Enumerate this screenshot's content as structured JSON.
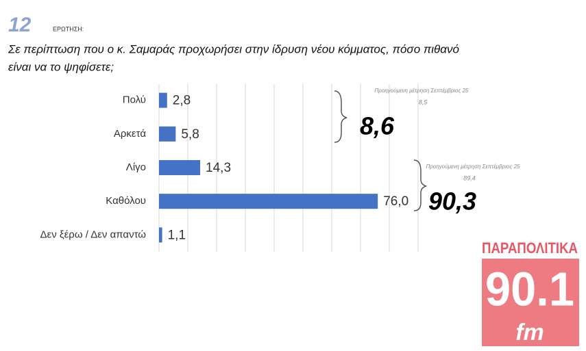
{
  "header": {
    "number": "12",
    "label": "ΕΡΩΤΗΣΗ:"
  },
  "chart_data": {
    "type": "bar",
    "orientation": "horizontal",
    "title_lines": [
      "Σε περίπτωση που ο κ. Σαμαράς προχωρήσει στην ίδρυση νέου κόμματος, πόσο πιθανό",
      "είναι να το ψηφίσετε;"
    ],
    "categories": [
      "Πολύ",
      "Αρκετά",
      "Λίγο",
      "Καθόλου",
      "Δεν ξέρω / Δεν απαντώ"
    ],
    "values": [
      2.8,
      5.8,
      14.3,
      76.0,
      1.1
    ],
    "value_labels": [
      "2,8",
      "5,8",
      "14,3",
      "76,0",
      "1,1"
    ],
    "color": "#4472c4",
    "xlim": [
      0,
      90
    ],
    "xticks": [
      0,
      10,
      20,
      30,
      40,
      50,
      60,
      70,
      80,
      90
    ],
    "grid": true,
    "annotations": [
      {
        "note": "Προηγούμενη μέτρηση Σεπτέμβριος 25",
        "previous": "8,5",
        "total": "8,6"
      },
      {
        "note": "Προηγούμενη μέτρηση Σεπτέμβριος 25",
        "previous": "89,4",
        "total": "90,3"
      }
    ]
  },
  "logo": {
    "name": "ΠΑΡΑΠΟΛΙΤΙΚΑ",
    "frequency": "90.1",
    "band": "fm"
  }
}
